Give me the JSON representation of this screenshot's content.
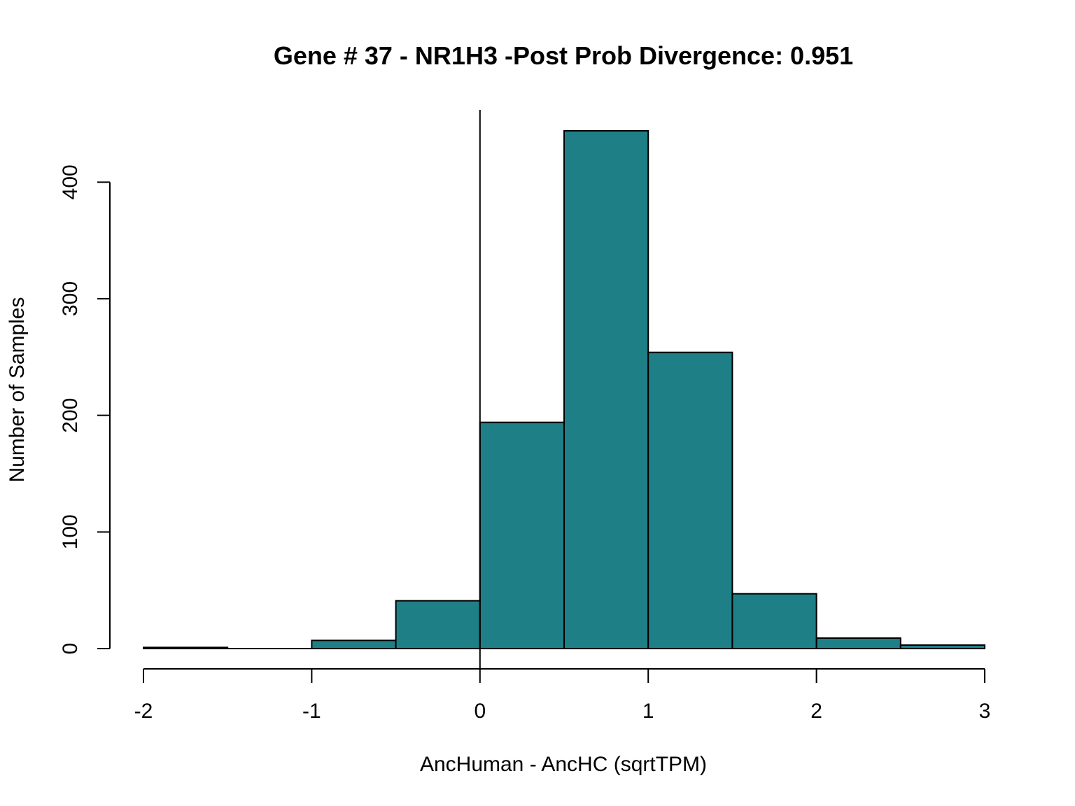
{
  "chart_data": {
    "type": "bar",
    "title": "Gene # 37 - NR1H3 -Post Prob Divergence: 0.951",
    "xlabel": "AncHuman - AncHC (sqrtTPM)",
    "ylabel": "Number of Samples",
    "bar_color": "#1f7f87",
    "bins": [
      {
        "start": -2.0,
        "end": -1.5,
        "count": 1
      },
      {
        "start": -1.5,
        "end": -1.0,
        "count": 0
      },
      {
        "start": -1.0,
        "end": -0.5,
        "count": 7
      },
      {
        "start": -0.5,
        "end": 0.0,
        "count": 41
      },
      {
        "start": 0.0,
        "end": 0.5,
        "count": 194
      },
      {
        "start": 0.5,
        "end": 1.0,
        "count": 444
      },
      {
        "start": 1.0,
        "end": 1.5,
        "count": 254
      },
      {
        "start": 1.5,
        "end": 2.0,
        "count": 47
      },
      {
        "start": 2.0,
        "end": 2.5,
        "count": 9
      },
      {
        "start": 2.5,
        "end": 3.0,
        "count": 3
      }
    ],
    "xlim": [
      -2,
      3
    ],
    "ylim": [
      0,
      444
    ],
    "x_ticks": [
      -2,
      -1,
      0,
      1,
      2,
      3
    ],
    "x_tick_labels": [
      "-2",
      "-1",
      "0",
      "1",
      "2",
      "3"
    ],
    "y_ticks": [
      0,
      100,
      200,
      300,
      400
    ],
    "y_tick_labels": [
      "0",
      "100",
      "200",
      "300",
      "400"
    ],
    "reference_line_x": 0,
    "grid": false,
    "legend": "none"
  }
}
